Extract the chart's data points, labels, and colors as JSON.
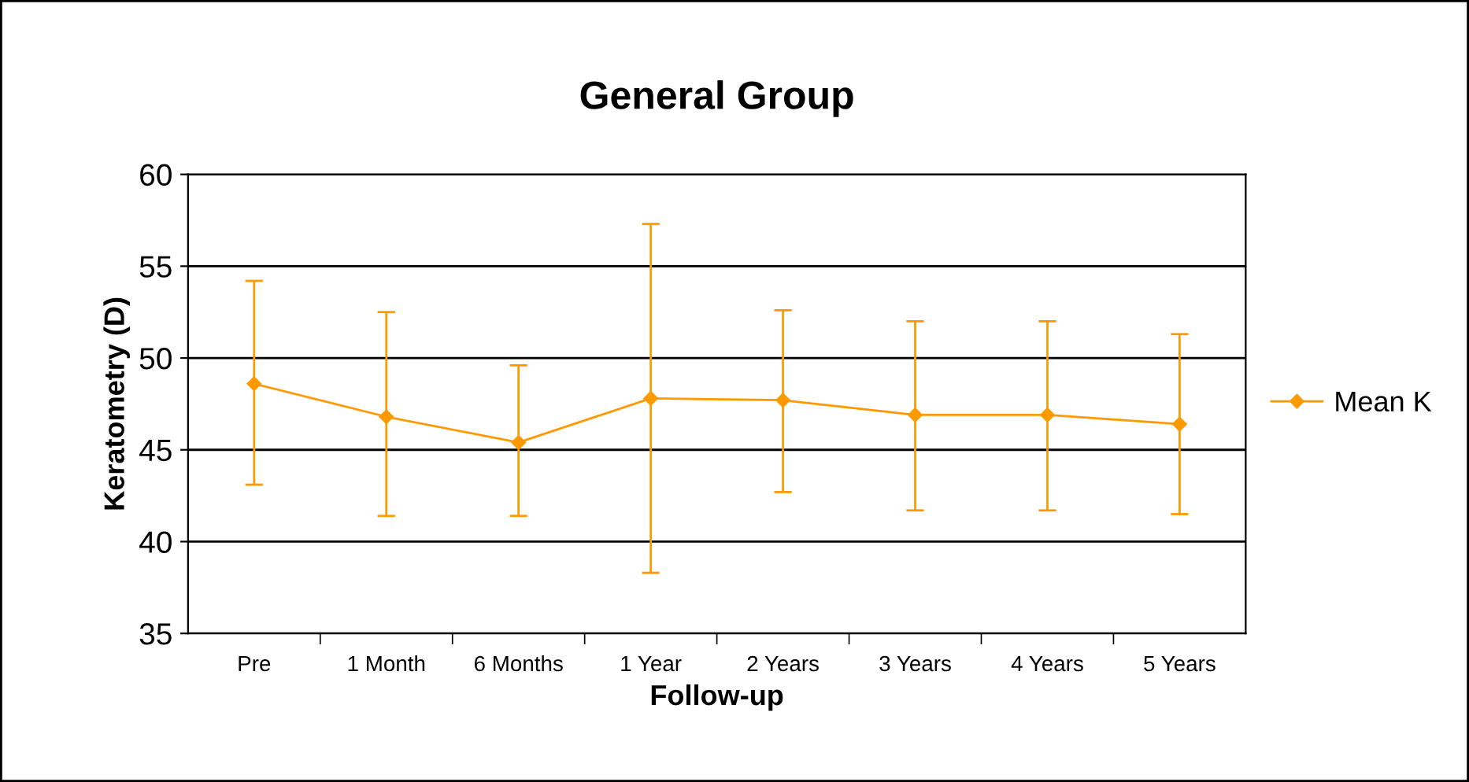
{
  "chart_data": {
    "type": "line",
    "title": "General Group",
    "xlabel": "Follow-up",
    "ylabel": "Keratometry (D)",
    "categories": [
      "Pre",
      "1 Month",
      "6 Months",
      "1 Year",
      "2 Years",
      "3 Years",
      "4 Years",
      "5 Years"
    ],
    "series": [
      {
        "name": "Mean K",
        "color": "#ff9900",
        "values": [
          48.6,
          46.8,
          45.4,
          47.8,
          47.7,
          46.9,
          46.9,
          46.4
        ],
        "errors": [
          [
            43.1,
            54.2
          ],
          [
            41.4,
            52.5
          ],
          [
            41.4,
            49.6
          ],
          [
            38.3,
            57.3
          ],
          [
            42.7,
            52.6
          ],
          [
            41.7,
            52.0
          ],
          [
            41.7,
            52.0
          ],
          [
            41.5,
            51.3
          ]
        ]
      }
    ],
    "ylim": [
      35,
      60
    ],
    "yticks": [
      35,
      40,
      45,
      50,
      55,
      60
    ],
    "grid": "y",
    "legend": "right",
    "marker": "diamond",
    "line_style": "solid"
  }
}
